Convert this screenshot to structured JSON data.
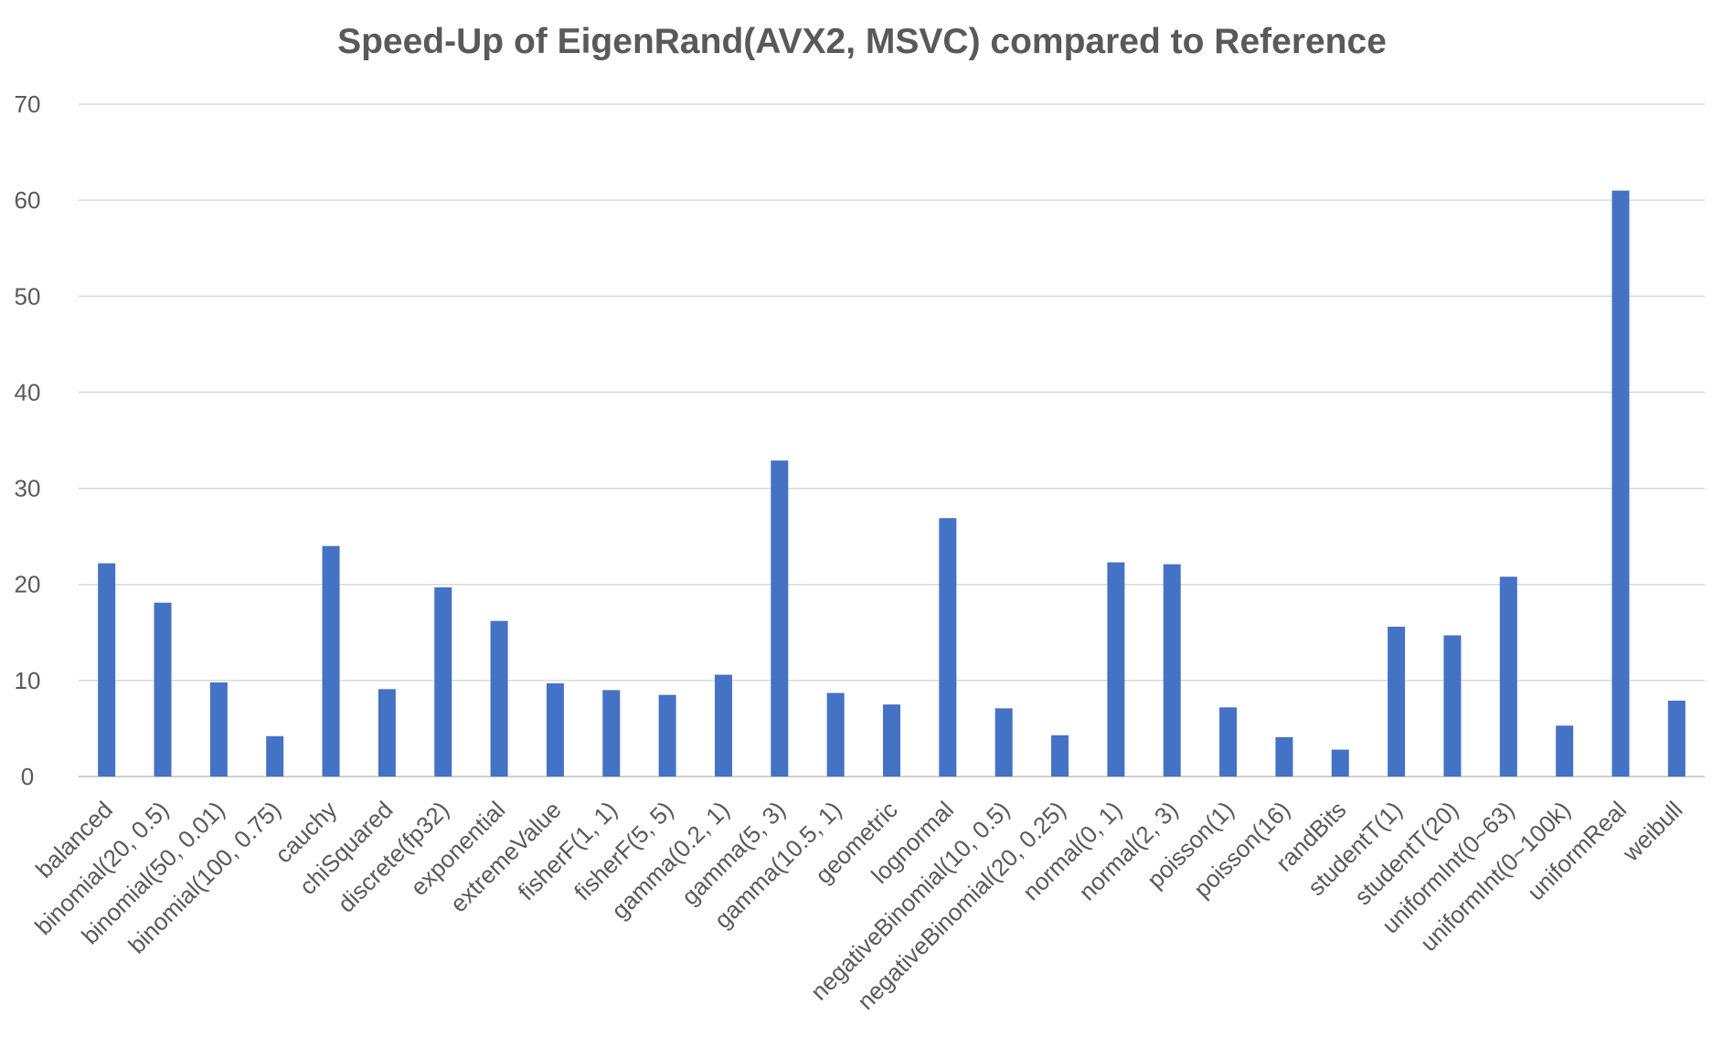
{
  "chart_data": {
    "type": "bar",
    "title": "Speed-Up of EigenRand(AVX2, MSVC) compared to Reference",
    "xlabel": "",
    "ylabel": "",
    "ylim": [
      0,
      70
    ],
    "yticks": [
      0,
      10,
      20,
      30,
      40,
      50,
      60,
      70
    ],
    "grid": true,
    "legend": "none",
    "bar_color": "#4472C4",
    "categories": [
      "balanced",
      "binomial(20, 0.5)",
      "binomial(50, 0.01)",
      "binomial(100, 0.75)",
      "cauchy",
      "chiSquared",
      "discrete(fp32)",
      "exponential",
      "extremeValue",
      "fisherF(1, 1)",
      "fisherF(5, 5)",
      "gamma(0.2, 1)",
      "gamma(5, 3)",
      "gamma(10.5, 1)",
      "geometric",
      "lognormal",
      "negativeBinomial(10, 0.5)",
      "negativeBinomial(20, 0.25)",
      "normal(0, 1)",
      "normal(2, 3)",
      "poisson(1)",
      "poisson(16)",
      "randBits",
      "studentT(1)",
      "studentT(20)",
      "uniformInt(0~63)",
      "uniformInt(0~100k)",
      "uniformReal",
      "weibull"
    ],
    "values": [
      22.2,
      18.1,
      9.8,
      4.2,
      24.0,
      9.1,
      19.7,
      16.2,
      9.7,
      9.0,
      8.5,
      10.6,
      32.9,
      8.7,
      7.5,
      26.9,
      7.1,
      4.3,
      22.3,
      22.1,
      7.2,
      4.1,
      2.8,
      15.6,
      14.7,
      20.8,
      5.3,
      61.0,
      7.9
    ]
  }
}
